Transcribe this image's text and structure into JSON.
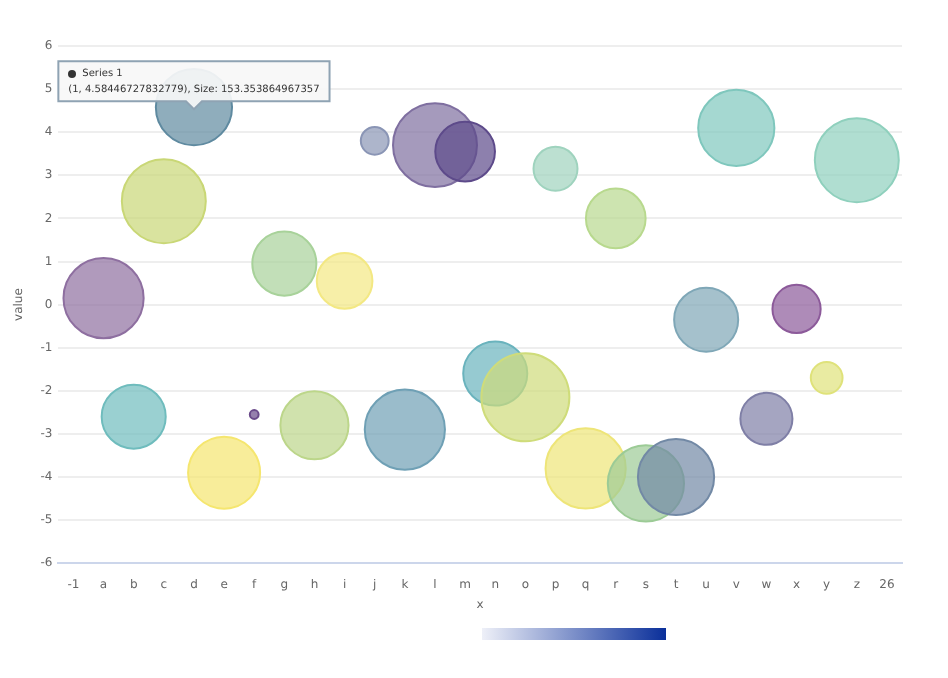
{
  "chart_data": {
    "type": "bubble",
    "xlabel": "x",
    "ylabel": "value",
    "categories": [
      "-1",
      "a",
      "b",
      "c",
      "d",
      "e",
      "f",
      "g",
      "h",
      "i",
      "j",
      "k",
      "l",
      "m",
      "n",
      "o",
      "p",
      "q",
      "r",
      "s",
      "t",
      "u",
      "v",
      "w",
      "x",
      "y",
      "z",
      "26"
    ],
    "series": [
      {
        "name": "Series 1",
        "x": [
          "a",
          "d",
          "c",
          "g",
          "i",
          "j",
          "l",
          "m",
          "p",
          "r",
          "v",
          "z",
          "u",
          "x",
          "y",
          "n",
          "o",
          "w",
          "b",
          "f",
          "e",
          "h",
          "k",
          "q",
          "s",
          "t"
        ],
        "values": [
          0.15,
          4.58,
          2.4,
          0.95,
          0.55,
          3.8,
          3.7,
          3.55,
          3.15,
          2.0,
          4.1,
          3.35,
          -0.35,
          -0.1,
          -1.7,
          -1.6,
          -2.15,
          -2.65,
          -2.6,
          -2.55,
          -3.9,
          -2.8,
          -2.9,
          -3.8,
          -4.15,
          -4.0
        ],
        "sizes": [
          0.83,
          0.75,
          0.91,
          0.53,
          0.4,
          0.1,
          0.91,
          0.46,
          0.25,
          0.46,
          0.75,
          0.91,
          0.53,
          0.3,
          0.13,
          0.53,
          1,
          0.35,
          0.53,
          0.01,
          0.67,
          0.6,
          0.83,
          0.83,
          0.75,
          0.75
        ],
        "colors": [
          "#8e6fa0",
          "#5f8aa0",
          "#c9d776",
          "#a8d29a",
          "#f3e883",
          "#8a95b5",
          "#7f6fa0",
          "#5d4a8a",
          "#9fd3be",
          "#b8d98e",
          "#7fc7bd",
          "#8fd0bd",
          "#7fa7b7",
          "#8c5a9a",
          "#dfe27a",
          "#6ab3bd",
          "#cfdc7a",
          "#7f7fa6",
          "#6fbcbd",
          "#6a4a8a",
          "#f5e66f",
          "#bcd68a",
          "#6fa0b5",
          "#eee578",
          "#9ccb96",
          "#7289a5"
        ]
      }
    ],
    "ylim": [
      -6,
      6
    ],
    "yticks": [
      -6,
      -5,
      -4,
      -3,
      -2,
      -1,
      0,
      1,
      2,
      3,
      4,
      5,
      6
    ],
    "grid": "y",
    "legend": false,
    "annotations": [
      {
        "text": "(1, 4.58446727832779), Size: 153.353864967357",
        "x": "d",
        "y": 4.58
      }
    ]
  }
}
